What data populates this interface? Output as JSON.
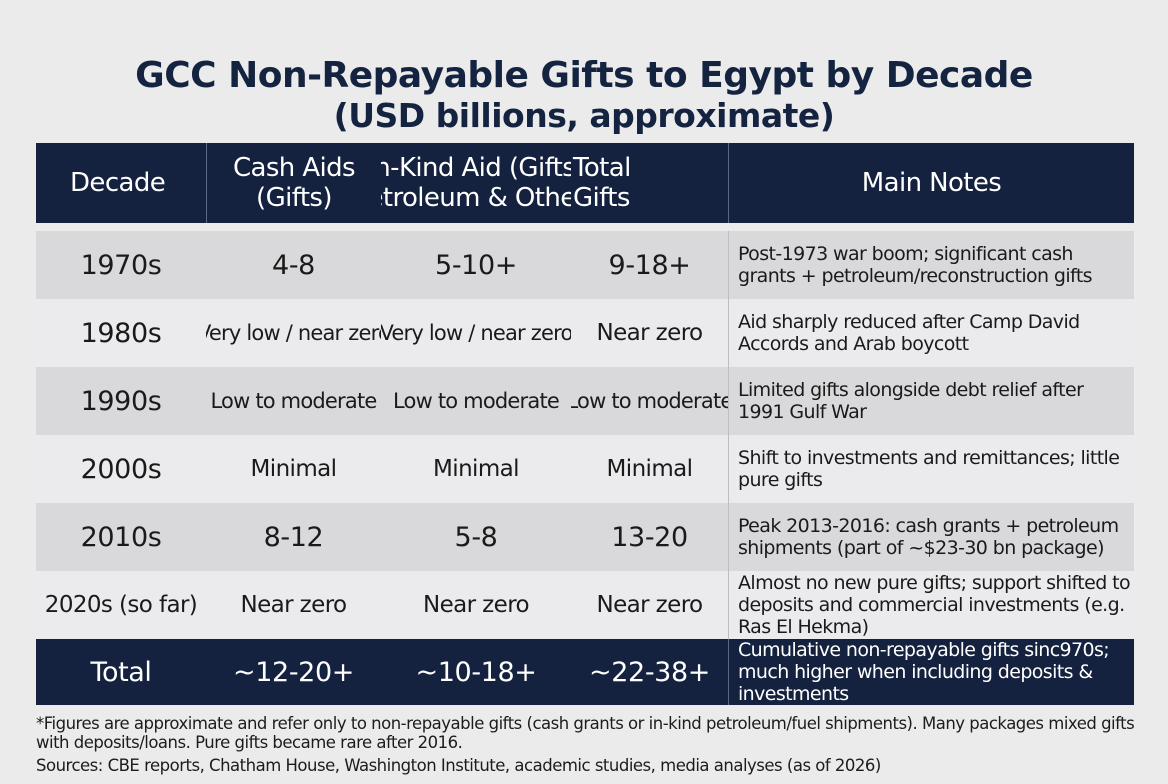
{
  "title": "GCC Non-Repayable Gifts to Egypt by Decade",
  "subtitle": "(USD billions, approximate)",
  "headers": {
    "decade": "Decade",
    "cash_line1": "Cash Aids",
    "cash_line2": "(Gifts)",
    "inkind_line1": "In-Kind Aid (Gifts)",
    "inkind_line2": "(Petroleum & Others)",
    "total_line1": "Total",
    "total_line2": "Gifts",
    "notes": "Main Notes"
  },
  "rows": [
    {
      "decade": "1970s",
      "cash": "4-8",
      "inkind": "5-10+",
      "total": "9-18+",
      "notes": "Post-1973 war boom; significant cash grants + petroleum/reconstruction gifts"
    },
    {
      "decade": "1980s",
      "cash": "Very low / near zero",
      "inkind": "Very low / near zero",
      "total": "Near zero",
      "notes": "Aid sharply reduced after Camp David Accords and Arab boycott"
    },
    {
      "decade": "1990s",
      "cash": "Low to moderate",
      "inkind": "Low to moderate",
      "total": "Low to moderate",
      "notes": "Limited gifts alongside debt relief after 1991 Gulf War"
    },
    {
      "decade": "2000s",
      "cash": "Minimal",
      "inkind": "Minimal",
      "total": "Minimal",
      "notes": "Shift to investments and remittances; little pure gifts"
    },
    {
      "decade": "2010s",
      "cash": "8-12",
      "inkind": "5-8",
      "total": "13-20",
      "notes": "Peak 2013-2016: cash grants + petroleum shipments (part of ~$23-30 bn package)"
    },
    {
      "decade": "2020s (so far)",
      "cash": "Near zero",
      "inkind": "Near zero",
      "total": "Near zero",
      "notes": "Almost no new pure gifts; support shifted to deposits and commercial investments (e.g. Ras El Hekma)"
    }
  ],
  "total_row": {
    "label": "Total",
    "cash": "~12-20+",
    "inkind": "~10-18+",
    "total": "~22-38+",
    "notes": "Cumulative non-repayable gifts sinc970s; much higher when including deposits & investments"
  },
  "footnote": "*Figures are approximate and refer only to non-repayable gifts (cash grants or in-kind petroleum/fuel shipments). Many packages mixed gifts with deposits/loans. Pure gifts became rare after 2016.",
  "sources": "Sources: CBE reports, Chatham House, Washington Institute, academic studies, media analyses (as of 2026)"
}
